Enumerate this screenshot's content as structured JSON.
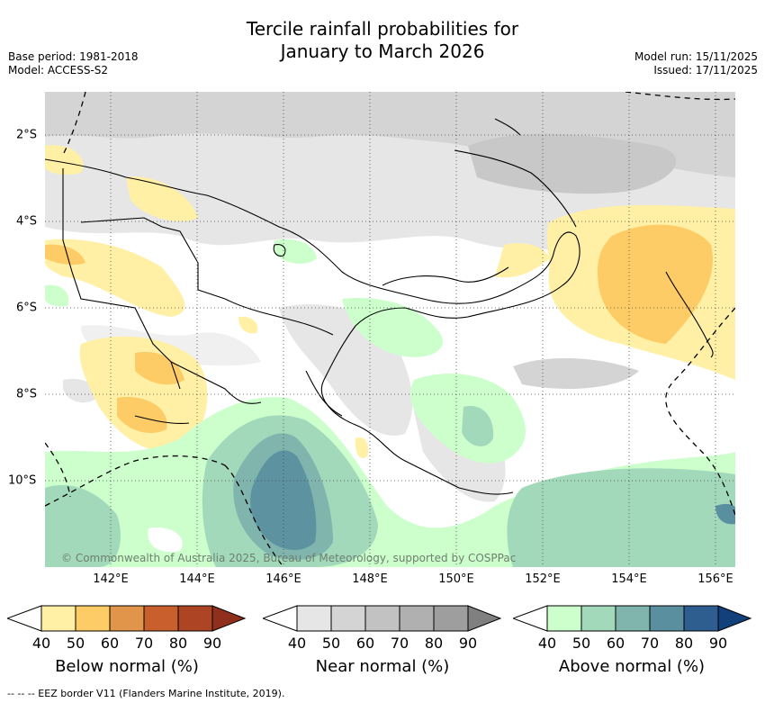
{
  "title": {
    "line1": "Tercile rainfall probabilities for",
    "line2": "January to March 2026"
  },
  "meta": {
    "base_period": "Base period: 1981-2018",
    "model": "Model: ACCESS-S2",
    "model_run": "Model run: 15/11/2025",
    "issued": "Issued: 17/11/2025"
  },
  "map": {
    "copyright": "© Commonwealth of Australia 2025, Bureau of Meteorology, supported by COSPPac",
    "x_ticks": [
      "142°E",
      "144°E",
      "146°E",
      "148°E",
      "150°E",
      "152°E",
      "154°E",
      "156°E"
    ],
    "y_ticks": [
      "2°S",
      "4°S",
      "6°S",
      "8°S",
      "10°S"
    ]
  },
  "colorbars": [
    {
      "label": "Below normal (%)",
      "ticks": [
        "40",
        "50",
        "60",
        "70",
        "80",
        "90"
      ],
      "colors": [
        "#fff0a6",
        "#fdcc66",
        "#e0954a",
        "#c95f2d",
        "#ad4524",
        "#8f2f1c"
      ]
    },
    {
      "label": "Near normal (%)",
      "ticks": [
        "40",
        "50",
        "60",
        "70",
        "80",
        "90"
      ],
      "colors": [
        "#e6e6e6",
        "#d4d4d4",
        "#c2c2c2",
        "#b0b0b0",
        "#9e9e9e",
        "#808080"
      ]
    },
    {
      "label": "Above normal (%)",
      "ticks": [
        "40",
        "50",
        "60",
        "70",
        "80",
        "90"
      ],
      "colors": [
        "#ccffcc",
        "#a2d9bb",
        "#7fb5ad",
        "#5a8fa0",
        "#2e5e8f",
        "#12407a"
      ]
    }
  ],
  "footer": "--  --  -- EEZ border V11 (Flanders Marine Institute, 2019).",
  "colors": {
    "yellow1": "#fff0a6",
    "yellow2": "#fdcc66",
    "grey1": "#e6e6e6",
    "grey2": "#d4d4d4",
    "green1": "#ccffcc",
    "green2": "#a2d9bb",
    "green3": "#7fb5ad",
    "green4": "#5a8fa0"
  }
}
